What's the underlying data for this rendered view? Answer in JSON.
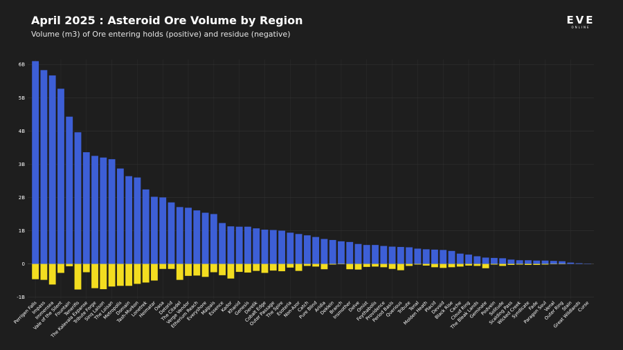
{
  "header": {
    "title": "April 2025 : Asteroid Ore Volume by Region",
    "subtitle": "Volume (m3) of Ore entering holds (positive) and residue (negative)",
    "logo_text": "EVE",
    "logo_subtext": "ONLINE"
  },
  "colors": {
    "background": "#1e1e1e",
    "positive": "#3d5fd6",
    "negative": "#f3dd20",
    "grid": "#333333",
    "zero_line": "#555555"
  },
  "chart_data": {
    "type": "bar",
    "title": "April 2025 : Asteroid Ore Volume by Region",
    "subtitle": "Volume (m3) of Ore entering holds (positive) and residue (negative)",
    "xlabel": "",
    "ylabel": "",
    "ylim": [
      -1.05,
      6.15
    ],
    "yticks": [
      {
        "value": -1,
        "label": "-1B"
      },
      {
        "value": 0,
        "label": "0"
      },
      {
        "value": 1,
        "label": "1B"
      },
      {
        "value": 2,
        "label": "2B"
      },
      {
        "value": 3,
        "label": "3B"
      },
      {
        "value": 4,
        "label": "4B"
      },
      {
        "value": 5,
        "label": "5B"
      },
      {
        "value": 6,
        "label": "6B"
      }
    ],
    "grid": true,
    "categories": [
      "Perrigen Falls",
      "Impass",
      "Immensea",
      "Vale of the Silent",
      "Fountain",
      "Tenerifis",
      "The Kalevala Expanse",
      "Tribute Forge",
      "Sinq Laison",
      "The Loisan",
      "Metropolis",
      "Domain",
      "Tash-Murkon",
      "Lonetrek",
      "Heimatar",
      "Oasa",
      "Detorid",
      "The Citadel",
      "Verge Vendor",
      "Etherium Reach",
      "Everyshore",
      "Malpais",
      "Essence",
      "Kador",
      "Khanid",
      "Genesis",
      "Derelik",
      "Cobalt Edge",
      "Outer Passage",
      "The Spire",
      "Esoteria",
      "Non-Azor",
      "Catch",
      "Pure Blind",
      "Aridia",
      "Deklein",
      "Branch",
      "Insmother",
      "Delve",
      "Omist",
      "Feythabolis",
      "Providence",
      "Period Basis",
      "Querious",
      "Tribute",
      "Tenal",
      "Molden Heath",
      "Placid",
      "Devoid",
      "Black Rise",
      "Cache",
      "Cloud Ring",
      "The Bleak Lands",
      "Geminate",
      "Podvein",
      "Solitude",
      "Scalding Pass",
      "Wicked Creek",
      "Syndicate",
      "Fade",
      "Paragon Soul",
      "Venal",
      "Outer Ring",
      "Stain",
      "Great Wildlands",
      "Curse"
    ],
    "series": [
      {
        "name": "Ore entering holds",
        "values": [
          6.1,
          5.83,
          5.67,
          5.27,
          4.43,
          3.96,
          3.36,
          3.25,
          3.2,
          3.15,
          2.87,
          2.64,
          2.6,
          2.24,
          2.02,
          2.0,
          1.85,
          1.71,
          1.69,
          1.61,
          1.54,
          1.5,
          1.23,
          1.13,
          1.12,
          1.12,
          1.07,
          1.03,
          1.02,
          1.0,
          0.94,
          0.9,
          0.86,
          0.81,
          0.75,
          0.72,
          0.68,
          0.66,
          0.6,
          0.57,
          0.57,
          0.54,
          0.52,
          0.51,
          0.5,
          0.46,
          0.44,
          0.43,
          0.42,
          0.39,
          0.31,
          0.28,
          0.23,
          0.19,
          0.18,
          0.17,
          0.13,
          0.11,
          0.11,
          0.1,
          0.1,
          0.09,
          0.08,
          0.04,
          0.02,
          0.01
        ]
      },
      {
        "name": "Residue",
        "values": [
          -0.46,
          -0.48,
          -0.62,
          -0.27,
          -0.07,
          -0.77,
          -0.25,
          -0.73,
          -0.76,
          -0.68,
          -0.66,
          -0.66,
          -0.6,
          -0.56,
          -0.5,
          -0.15,
          -0.15,
          -0.48,
          -0.36,
          -0.35,
          -0.39,
          -0.25,
          -0.34,
          -0.44,
          -0.24,
          -0.26,
          -0.21,
          -0.27,
          -0.2,
          -0.22,
          -0.11,
          -0.21,
          -0.06,
          -0.08,
          -0.16,
          -0.02,
          -0.01,
          -0.16,
          -0.17,
          -0.09,
          -0.08,
          -0.1,
          -0.15,
          -0.19,
          -0.06,
          -0.02,
          -0.05,
          -0.1,
          -0.12,
          -0.1,
          -0.08,
          -0.05,
          -0.06,
          -0.13,
          -0.02,
          -0.06,
          -0.03,
          -0.02,
          -0.03,
          -0.03,
          -0.02,
          -0.01,
          -0.01,
          0,
          0,
          0
        ]
      }
    ]
  }
}
